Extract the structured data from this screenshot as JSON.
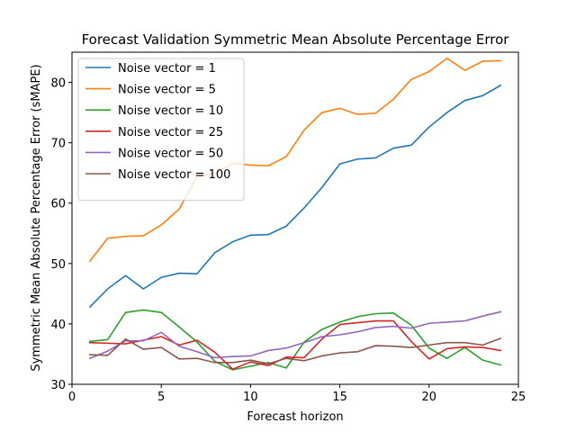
{
  "chart_data": {
    "type": "line",
    "title": "Forecast Validation Symmetric Mean Absolute Percentage Error",
    "xlabel": "Forecast horizon",
    "ylabel": "Symmetric Mean Absolute Percentage Error (sMAPE)",
    "xlim": [
      0,
      25
    ],
    "ylim": [
      30,
      85
    ],
    "xticks": [
      0,
      5,
      10,
      15,
      20,
      25
    ],
    "yticks": [
      30,
      40,
      50,
      60,
      70,
      80
    ],
    "grid": false,
    "legend_position": "top-left",
    "x": [
      1,
      2,
      3,
      4,
      5,
      6,
      7,
      8,
      9,
      10,
      11,
      12,
      13,
      14,
      15,
      16,
      17,
      18,
      19,
      20,
      21,
      22,
      23,
      24
    ],
    "series": [
      {
        "name": "Noise vector = 1",
        "color": "#1f77b4",
        "values": [
          42.8,
          45.8,
          48.0,
          45.8,
          47.7,
          48.4,
          48.3,
          51.8,
          53.6,
          54.7,
          54.8,
          56.2,
          59.2,
          62.6,
          66.5,
          67.3,
          67.5,
          69.1,
          69.6,
          72.6,
          75.0,
          77.0,
          77.8,
          79.5
        ]
      },
      {
        "name": "Noise vector = 5",
        "color": "#ff7f0e",
        "values": [
          50.4,
          54.2,
          54.5,
          54.6,
          56.4,
          59.0,
          64.4,
          64.9,
          66.6,
          66.3,
          66.2,
          67.7,
          72.1,
          75.0,
          75.7,
          74.7,
          74.9,
          77.2,
          80.5,
          81.8,
          84.0,
          82.0,
          83.5,
          83.6
        ]
      },
      {
        "name": "Noise vector = 10",
        "color": "#2ca02c",
        "values": [
          37.1,
          37.4,
          41.9,
          42.3,
          41.9,
          39.5,
          37.0,
          33.8,
          32.4,
          33.0,
          33.6,
          32.7,
          37.0,
          39.1,
          40.3,
          41.2,
          41.7,
          41.8,
          39.8,
          36.0,
          34.3,
          36.1,
          34.0,
          33.2
        ]
      },
      {
        "name": "Noise vector = 25",
        "color": "#d62728",
        "values": [
          36.9,
          36.8,
          36.7,
          37.3,
          37.9,
          36.5,
          37.3,
          35.3,
          32.5,
          33.7,
          33.1,
          34.5,
          34.4,
          37.5,
          39.9,
          40.2,
          40.5,
          40.5,
          37.1,
          34.2,
          35.9,
          36.2,
          36.1,
          35.6
        ]
      },
      {
        "name": "Noise vector = 50",
        "color": "#9467bd",
        "values": [
          34.3,
          35.5,
          37.2,
          37.2,
          38.6,
          36.3,
          35.4,
          34.4,
          34.6,
          34.7,
          35.6,
          36.0,
          36.9,
          37.9,
          38.2,
          38.7,
          39.4,
          39.6,
          39.3,
          40.1,
          40.3,
          40.5,
          41.3,
          42.0
        ]
      },
      {
        "name": "Noise vector = 100",
        "color": "#8c564b",
        "values": [
          34.9,
          34.8,
          37.5,
          35.8,
          36.1,
          34.2,
          34.3,
          33.6,
          33.6,
          34.0,
          33.4,
          34.3,
          33.9,
          34.7,
          35.2,
          35.4,
          36.4,
          36.3,
          36.1,
          36.5,
          36.9,
          36.9,
          36.5,
          37.6
        ]
      }
    ]
  }
}
